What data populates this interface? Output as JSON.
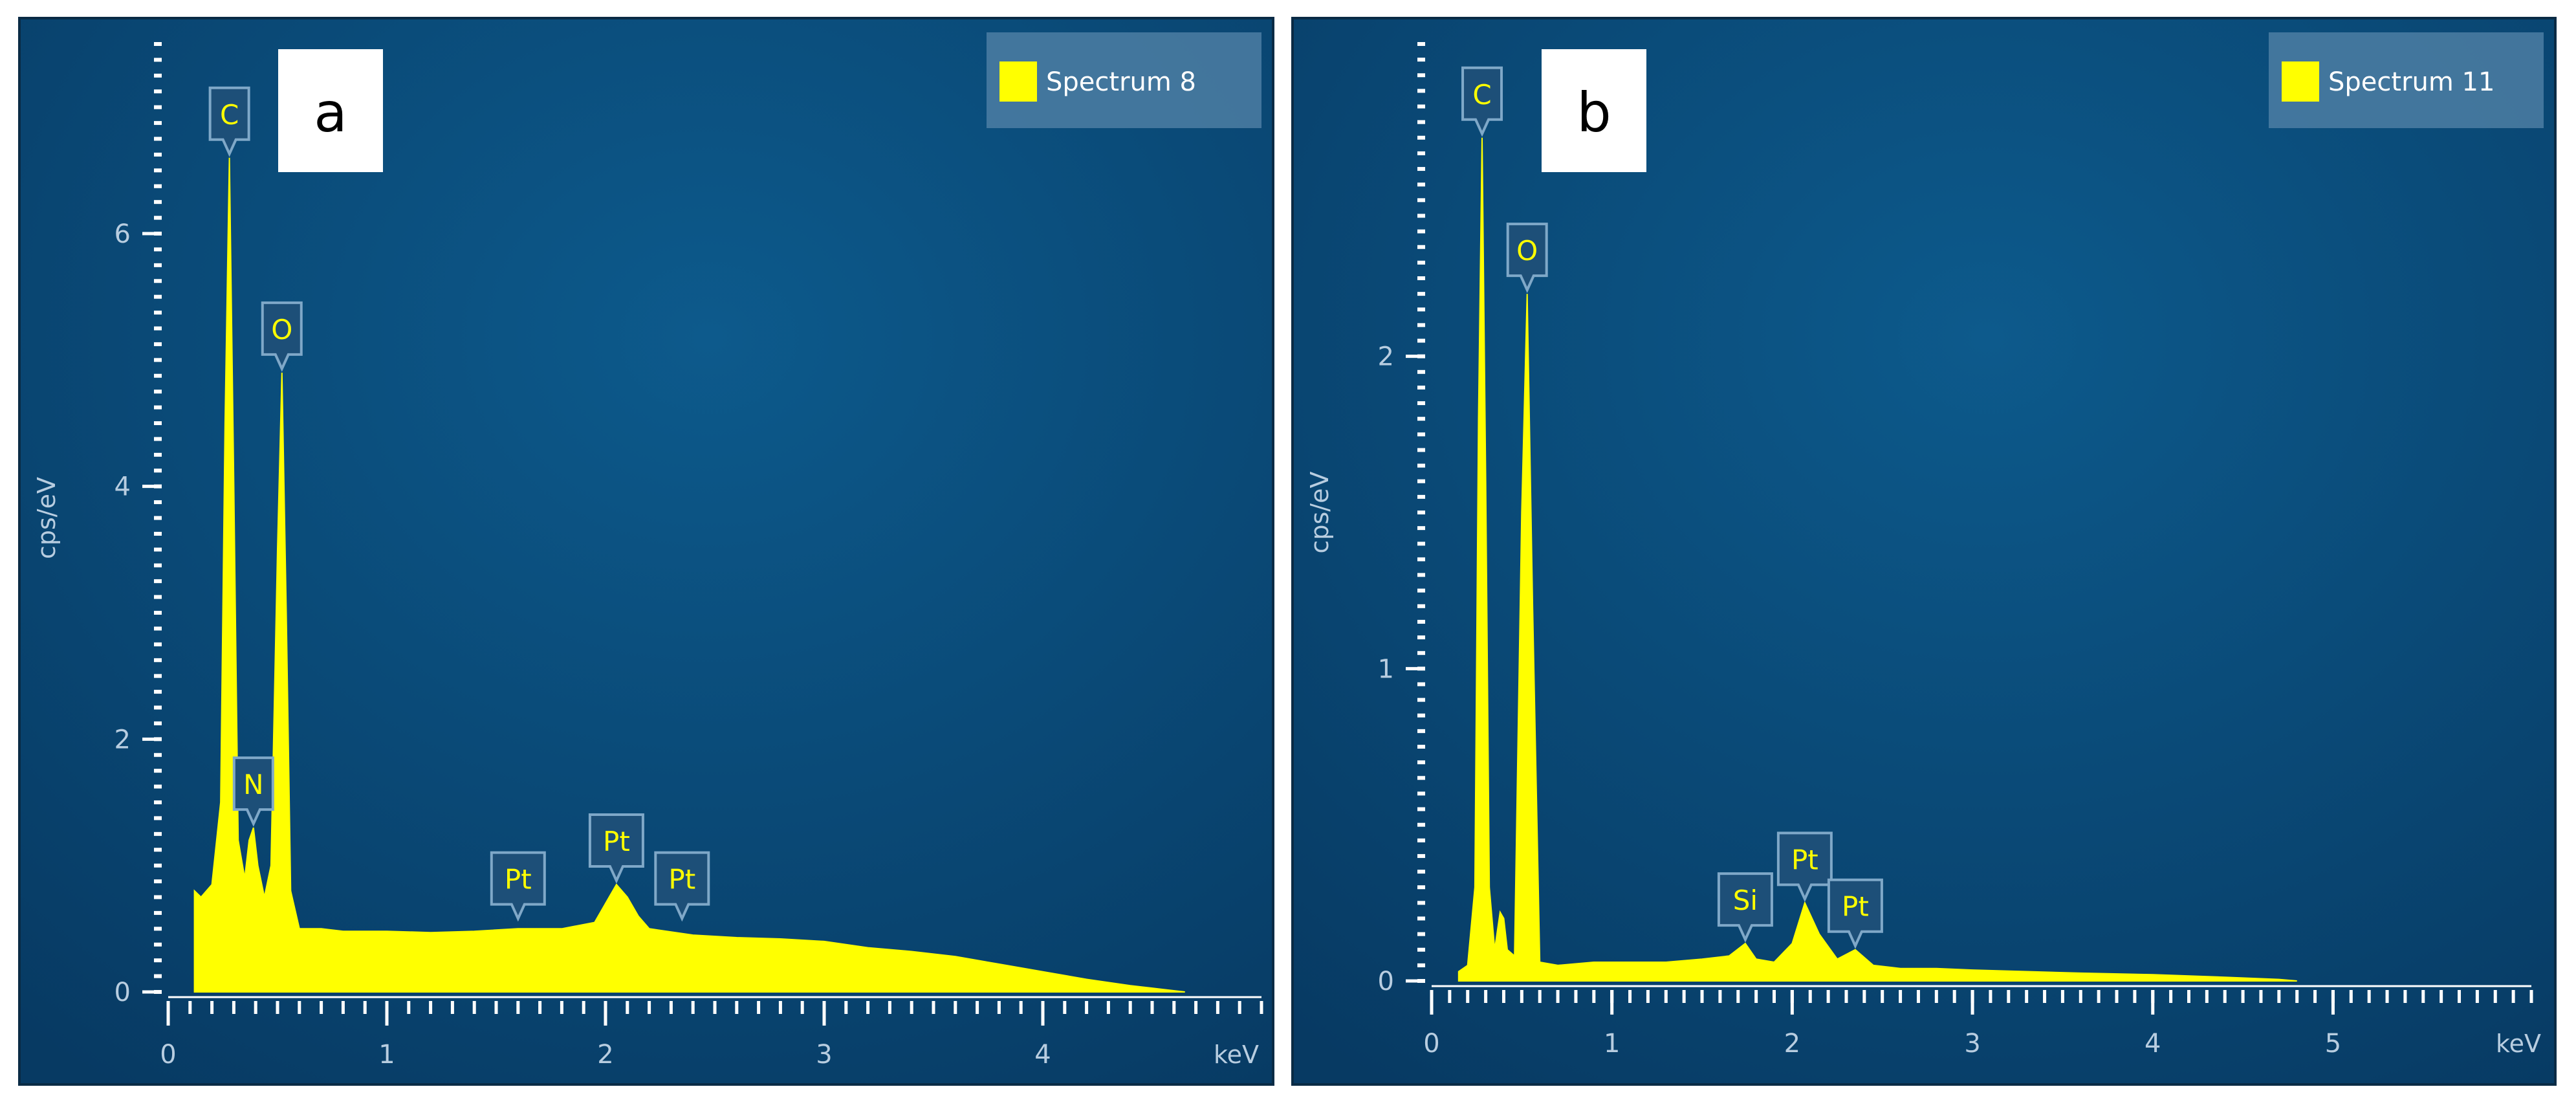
{
  "colors": {
    "background_center": "#0d5a8c",
    "background_edge": "#073a63",
    "spectrum": "#ffff00",
    "axis_text": "#b8cde0",
    "tick": "#ffffff",
    "marker_fill": "#1d4f78",
    "marker_border": "#7fa8c8"
  },
  "chart_data": [
    {
      "type": "area",
      "panel_label": "a",
      "legend": "Spectrum 8",
      "legend_position": "top-right",
      "xlabel": "keV",
      "ylabel": "cps/eV",
      "xlim": [
        0,
        5
      ],
      "ylim": [
        0,
        7.5
      ],
      "x_ticks": [
        "0",
        "1",
        "2",
        "3",
        "4"
      ],
      "y_ticks": [
        "0",
        "2",
        "4",
        "6"
      ],
      "grid": false,
      "peaks": [
        {
          "label": "C",
          "x": 0.28,
          "y": 6.6
        },
        {
          "label": "N",
          "x": 0.39,
          "y": 1.3
        },
        {
          "label": "O",
          "x": 0.52,
          "y": 4.9
        },
        {
          "label": "Pt",
          "x": 1.6,
          "y": 0.55
        },
        {
          "label": "Pt",
          "x": 2.05,
          "y": 0.85
        },
        {
          "label": "Pt",
          "x": 2.35,
          "y": 0.55
        }
      ],
      "series": [
        {
          "x": [
            0.12,
            0.15,
            0.2,
            0.24,
            0.26,
            0.28,
            0.3,
            0.32,
            0.35,
            0.37,
            0.39,
            0.41,
            0.44,
            0.47,
            0.5,
            0.52,
            0.54,
            0.56,
            0.6,
            0.7,
            0.8,
            1.0,
            1.2,
            1.4,
            1.6,
            1.8,
            1.95,
            2.0,
            2.05,
            2.1,
            2.15,
            2.2,
            2.4,
            2.6,
            2.8,
            3.0,
            3.2,
            3.4,
            3.6,
            3.8,
            4.0,
            4.2,
            4.4,
            4.55,
            4.65
          ],
          "y": [
            0.8,
            0.75,
            0.85,
            1.5,
            4.5,
            6.6,
            4.0,
            1.2,
            0.9,
            1.2,
            1.3,
            1.0,
            0.75,
            1.0,
            3.5,
            4.9,
            3.0,
            0.8,
            0.5,
            0.5,
            0.48,
            0.48,
            0.47,
            0.48,
            0.5,
            0.5,
            0.55,
            0.7,
            0.85,
            0.75,
            0.6,
            0.5,
            0.45,
            0.43,
            0.42,
            0.4,
            0.35,
            0.32,
            0.28,
            0.22,
            0.16,
            0.1,
            0.05,
            0.02,
            0.0
          ]
        }
      ]
    },
    {
      "type": "area",
      "panel_label": "b",
      "legend": "Spectrum 11",
      "legend_position": "top-right",
      "xlabel": "keV",
      "ylabel": "cps/eV",
      "xlim": [
        0,
        6.1
      ],
      "ylim": [
        0,
        3.0
      ],
      "x_ticks": [
        "0",
        "1",
        "2",
        "3",
        "4",
        "5"
      ],
      "y_ticks": [
        "0",
        "1",
        "2"
      ],
      "grid": false,
      "peaks": [
        {
          "label": "C",
          "x": 0.28,
          "y": 2.7
        },
        {
          "label": "O",
          "x": 0.53,
          "y": 2.2
        },
        {
          "label": "Si",
          "x": 1.74,
          "y": 0.12
        },
        {
          "label": "Pt",
          "x": 2.07,
          "y": 0.25
        },
        {
          "label": "Pt",
          "x": 2.35,
          "y": 0.1
        }
      ],
      "series": [
        {
          "x": [
            0.15,
            0.2,
            0.24,
            0.26,
            0.28,
            0.3,
            0.32,
            0.35,
            0.38,
            0.4,
            0.42,
            0.46,
            0.5,
            0.53,
            0.56,
            0.6,
            0.7,
            0.9,
            1.1,
            1.3,
            1.5,
            1.65,
            1.74,
            1.8,
            1.9,
            2.0,
            2.07,
            2.15,
            2.25,
            2.35,
            2.45,
            2.6,
            2.8,
            3.0,
            3.3,
            3.6,
            4.0,
            4.4,
            4.7,
            4.8
          ],
          "y": [
            0.03,
            0.05,
            0.3,
            1.8,
            2.7,
            1.6,
            0.3,
            0.1,
            0.22,
            0.2,
            0.1,
            0.08,
            1.5,
            2.2,
            1.2,
            0.06,
            0.05,
            0.06,
            0.06,
            0.06,
            0.07,
            0.08,
            0.12,
            0.07,
            0.06,
            0.12,
            0.25,
            0.15,
            0.07,
            0.1,
            0.05,
            0.04,
            0.04,
            0.035,
            0.03,
            0.025,
            0.02,
            0.012,
            0.005,
            0.0
          ]
        }
      ]
    }
  ]
}
